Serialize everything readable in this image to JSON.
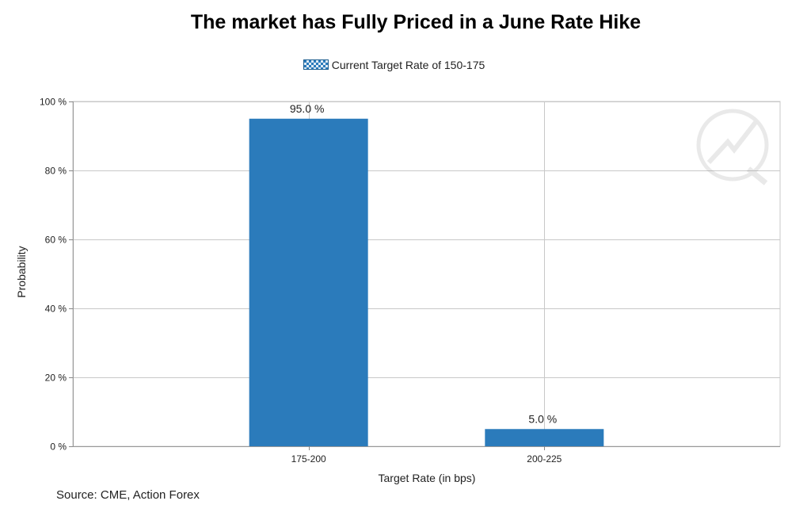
{
  "chart_data": {
    "type": "bar",
    "title": "The market has Fully Priced in a June Rate Hike",
    "xlabel": "Target Rate (in bps)",
    "ylabel": "Probability",
    "categories": [
      "175-200",
      "200-225"
    ],
    "series": [
      {
        "name": "Current Target Rate of 150-175",
        "values": [
          95.0,
          5.0
        ],
        "color": "#2b7bbb"
      }
    ],
    "data_labels": [
      "95.0 %",
      "5.0 %"
    ],
    "ylim": [
      0,
      100
    ],
    "y_ticks": [
      0,
      20,
      40,
      60,
      80,
      100
    ],
    "y_tick_labels": [
      "0 %",
      "20 %",
      "40 %",
      "60 %",
      "80 %",
      "100 %"
    ],
    "grid": true,
    "legend_position": "top-center"
  },
  "source": "Source: CME, Action Forex"
}
